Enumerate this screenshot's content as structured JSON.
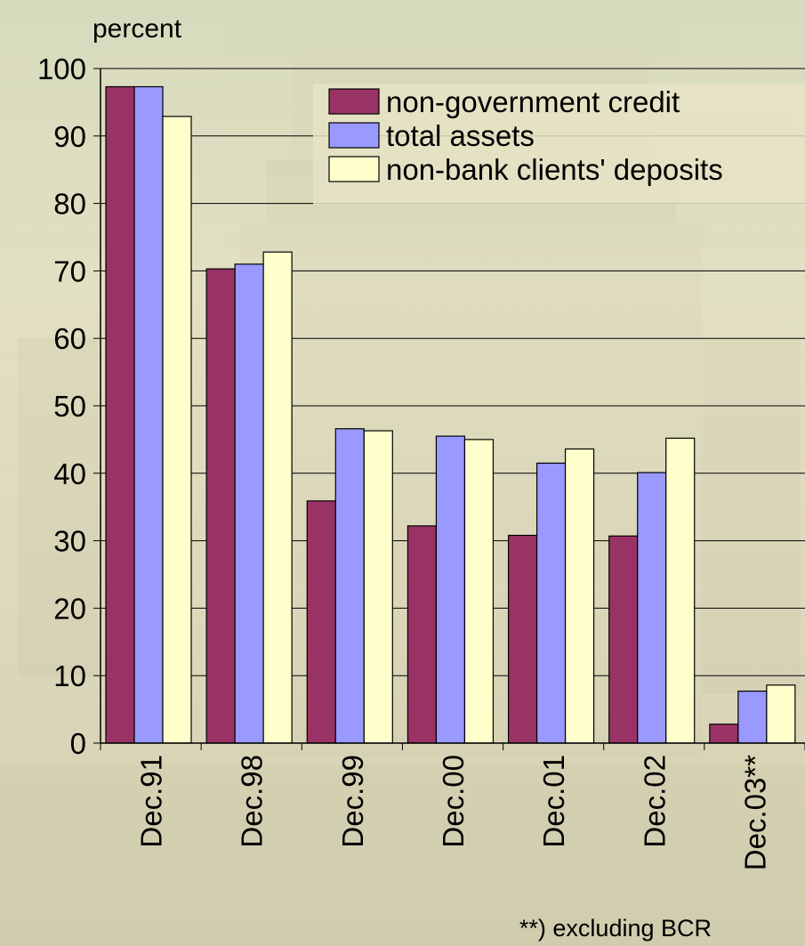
{
  "chart_data": {
    "type": "bar",
    "ylabel": "percent",
    "ylim": [
      0,
      100
    ],
    "yticks": [
      0,
      10,
      20,
      30,
      40,
      50,
      60,
      70,
      80,
      90,
      100
    ],
    "grid": true,
    "legend_position": "top-right",
    "categories": [
      "Dec.91",
      "Dec.98",
      "Dec.99",
      "Dec.00",
      "Dec.01",
      "Dec.02",
      "Dec.03**"
    ],
    "series": [
      {
        "name": "non-government credit",
        "color": "#993366",
        "values": [
          97.3,
          70.3,
          35.9,
          32.2,
          30.8,
          30.7,
          2.8
        ]
      },
      {
        "name": "total assets",
        "color": "#9999ff",
        "values": [
          97.3,
          71.0,
          46.6,
          45.5,
          41.5,
          40.1,
          7.7
        ]
      },
      {
        "name": "non-bank clients' deposits",
        "color": "#ffffcc",
        "values": [
          92.9,
          72.8,
          46.3,
          45.0,
          43.6,
          45.2,
          8.6
        ]
      }
    ],
    "footnote": "**) excluding BCR"
  }
}
